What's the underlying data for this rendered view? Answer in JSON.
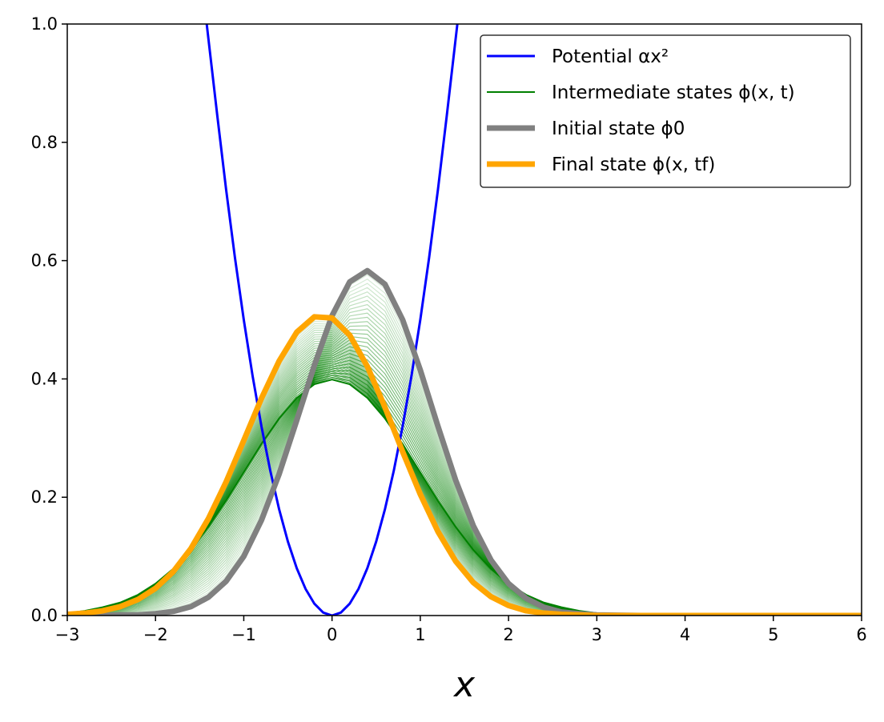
{
  "chart_data": {
    "type": "line",
    "title": "",
    "xlabel": "x",
    "ylabel": "",
    "xlim": [
      -3,
      6
    ],
    "ylim": [
      0,
      1
    ],
    "x_ticks": [
      -3,
      -2,
      -1,
      0,
      1,
      2,
      3,
      4,
      5,
      6
    ],
    "x_tick_labels": [
      "−3",
      "−2",
      "−1",
      "0",
      "1",
      "2",
      "3",
      "4",
      "5",
      "6"
    ],
    "y_ticks": [
      0,
      0.2,
      0.4,
      0.6,
      0.8,
      1.0
    ],
    "y_tick_labels": [
      "0.0",
      "0.2",
      "0.4",
      "0.6",
      "0.8",
      "1.0"
    ],
    "grid": false,
    "legend_position": "top-right",
    "legend": [
      {
        "text": "Potential αx²",
        "color": "#0000ff",
        "kind": "potential"
      },
      {
        "text": "Intermediate states ϕ(x, t)",
        "color": "#008000",
        "kind": "intermediate"
      },
      {
        "text": "Initial state ϕ0",
        "color": "#808080",
        "kind": "initial"
      },
      {
        "text": "Final state ϕ(x, tf)",
        "color": "#ffa500",
        "kind": "final"
      }
    ],
    "series": [
      {
        "name": "Potential αx²",
        "color": "#0000ff",
        "x": [
          -1.42,
          -1.3,
          -1.2,
          -1.1,
          -1.0,
          -0.9,
          -0.8,
          -0.7,
          -0.6,
          -0.5,
          -0.4,
          -0.3,
          -0.2,
          -0.1,
          0.0,
          0.1,
          0.2,
          0.3,
          0.4,
          0.5,
          0.6,
          0.7,
          0.8,
          0.9,
          1.0,
          1.1,
          1.2,
          1.3,
          1.42
        ],
        "y": [
          1.0,
          0.845,
          0.72,
          0.605,
          0.5,
          0.405,
          0.32,
          0.245,
          0.18,
          0.125,
          0.08,
          0.045,
          0.02,
          0.005,
          0.0,
          0.005,
          0.02,
          0.045,
          0.08,
          0.125,
          0.18,
          0.245,
          0.32,
          0.405,
          0.5,
          0.605,
          0.72,
          0.845,
          1.0
        ]
      },
      {
        "name": "Intermediate states ϕ(x, t)",
        "color": "#008000",
        "x": [
          -3.0,
          -2.8,
          -2.6,
          -2.4,
          -2.2,
          -2.0,
          -1.8,
          -1.6,
          -1.4,
          -1.2,
          -1.0,
          -0.8,
          -0.6,
          -0.4,
          -0.2,
          0.0,
          0.2,
          0.4,
          0.6,
          0.8,
          1.0,
          1.2,
          1.4,
          1.6,
          1.8,
          2.0,
          2.2,
          2.4,
          2.6,
          2.8,
          3.0,
          3.5,
          4.0,
          5.0,
          6.0
        ],
        "y": [
          0.004,
          0.008,
          0.014,
          0.022,
          0.035,
          0.054,
          0.079,
          0.111,
          0.15,
          0.194,
          0.242,
          0.29,
          0.333,
          0.368,
          0.391,
          0.399,
          0.391,
          0.368,
          0.333,
          0.29,
          0.242,
          0.194,
          0.15,
          0.111,
          0.079,
          0.054,
          0.035,
          0.022,
          0.014,
          0.008,
          0.004,
          0.001,
          0.0,
          0.0,
          0.0
        ]
      },
      {
        "name": "Initial state ϕ0",
        "color": "#808080",
        "x": [
          -3.0,
          -2.8,
          -2.6,
          -2.4,
          -2.2,
          -2.0,
          -1.8,
          -1.6,
          -1.4,
          -1.2,
          -1.0,
          -0.8,
          -0.6,
          -0.4,
          -0.2,
          0.0,
          0.2,
          0.4,
          0.6,
          0.8,
          1.0,
          1.2,
          1.4,
          1.6,
          1.8,
          2.0,
          2.2,
          2.4,
          2.6,
          2.8,
          3.0,
          3.5,
          4.0,
          5.0,
          6.0
        ],
        "y": [
          0.0,
          0.0,
          0.0,
          0.001,
          0.001,
          0.003,
          0.007,
          0.015,
          0.031,
          0.058,
          0.1,
          0.161,
          0.239,
          0.33,
          0.423,
          0.507,
          0.564,
          0.583,
          0.56,
          0.5,
          0.415,
          0.32,
          0.229,
          0.152,
          0.094,
          0.054,
          0.029,
          0.014,
          0.006,
          0.003,
          0.001,
          0.0,
          0.0,
          0.0,
          0.0
        ]
      },
      {
        "name": "Final state ϕ(x, tf)",
        "color": "#ffa500",
        "x": [
          -3.0,
          -2.8,
          -2.6,
          -2.4,
          -2.2,
          -2.0,
          -1.8,
          -1.6,
          -1.4,
          -1.2,
          -1.0,
          -0.8,
          -0.6,
          -0.4,
          -0.2,
          0.0,
          0.2,
          0.4,
          0.6,
          0.8,
          1.0,
          1.2,
          1.4,
          1.6,
          1.8,
          2.0,
          2.2,
          2.4,
          2.6,
          2.8,
          3.0,
          3.5,
          4.0,
          5.0,
          6.0
        ],
        "y": [
          0.002,
          0.004,
          0.008,
          0.015,
          0.027,
          0.046,
          0.074,
          0.113,
          0.164,
          0.226,
          0.296,
          0.367,
          0.43,
          0.479,
          0.505,
          0.503,
          0.474,
          0.421,
          0.352,
          0.277,
          0.205,
          0.142,
          0.092,
          0.056,
          0.032,
          0.017,
          0.008,
          0.004,
          0.002,
          0.001,
          0.0,
          0.0,
          0.0,
          0.0,
          0.0
        ]
      }
    ]
  }
}
